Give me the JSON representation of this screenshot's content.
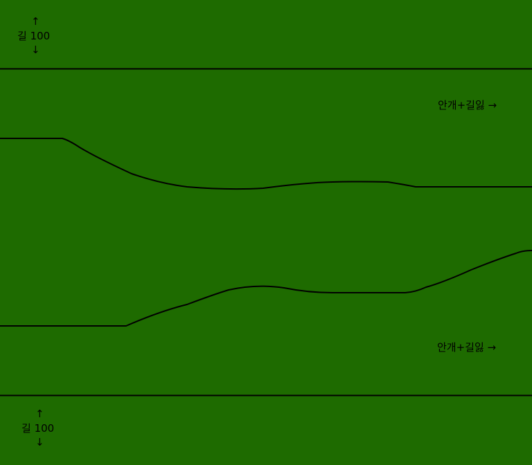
{
  "colors": {
    "ground": "#1e6b00",
    "line": "#000000"
  },
  "top_marker": {
    "up_arrow": "↑",
    "label": "길 100",
    "down_arrow": "↓"
  },
  "bottom_marker": {
    "up_arrow": "↑",
    "label": "길 100",
    "down_arrow": "↓"
  },
  "hazard_top": {
    "label": "안개+길잃 →"
  },
  "hazard_bottom": {
    "label": "안개+길잃 →"
  }
}
